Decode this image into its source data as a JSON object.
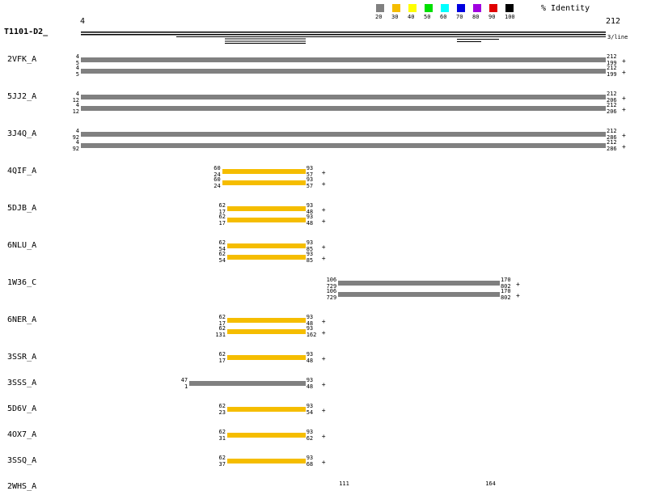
{
  "query": {
    "name": "T1101-D2_",
    "start": "4",
    "end": "212",
    "per_line": "3/line"
  },
  "legend": {
    "title": "% Identity",
    "items": [
      {
        "label": "20",
        "color": "#808080"
      },
      {
        "label": "30",
        "color": "#f5bd00"
      },
      {
        "label": "40",
        "color": "#ffff00"
      },
      {
        "label": "50",
        "color": "#00e000"
      },
      {
        "label": "60",
        "color": "#00ffff"
      },
      {
        "label": "70",
        "color": "#0000e0"
      },
      {
        "label": "80",
        "color": "#a000e0"
      },
      {
        "label": "90",
        "color": "#e00000"
      },
      {
        "label": "100",
        "color": "#000000"
      }
    ]
  },
  "hits": [
    {
      "name": "2VFK_A",
      "segments": [
        {
          "qs": "4",
          "ts": "5",
          "qe": "212",
          "te": "199",
          "flag": "+",
          "color": "#808080"
        },
        {
          "qs": "4",
          "ts": "5",
          "qe": "212",
          "te": "199",
          "flag": "+",
          "color": "#808080"
        }
      ]
    },
    {
      "name": "5JJ2_A",
      "segments": [
        {
          "qs": "4",
          "ts": "12",
          "qe": "212",
          "te": "206",
          "flag": "+",
          "color": "#808080"
        },
        {
          "qs": "4",
          "ts": "12",
          "qe": "212",
          "te": "206",
          "flag": "+",
          "color": "#808080"
        }
      ]
    },
    {
      "name": "3J4Q_A",
      "segments": [
        {
          "qs": "4",
          "ts": "92",
          "qe": "212",
          "te": "286",
          "flag": "+",
          "color": "#808080"
        },
        {
          "qs": "4",
          "ts": "92",
          "qe": "212",
          "te": "286",
          "flag": "+",
          "color": "#808080"
        }
      ]
    },
    {
      "name": "4QIF_A",
      "segments": [
        {
          "qs": "60",
          "ts": "24",
          "qe": "93",
          "te": "57",
          "flag": "+",
          "color": "#f5bd00"
        },
        {
          "qs": "60",
          "ts": "24",
          "qe": "93",
          "te": "57",
          "flag": "+",
          "color": "#f5bd00"
        }
      ]
    },
    {
      "name": "5DJB_A",
      "segments": [
        {
          "qs": "62",
          "ts": "17",
          "qe": "93",
          "te": "48",
          "flag": "+",
          "color": "#f5bd00"
        },
        {
          "qs": "62",
          "ts": "17",
          "qe": "93",
          "te": "48",
          "flag": "+",
          "color": "#f5bd00"
        }
      ]
    },
    {
      "name": "6NLU_A",
      "segments": [
        {
          "qs": "62",
          "ts": "54",
          "qe": "93",
          "te": "85",
          "flag": "+",
          "color": "#f5bd00"
        },
        {
          "qs": "62",
          "ts": "54",
          "qe": "93",
          "te": "85",
          "flag": "+",
          "color": "#f5bd00"
        }
      ]
    },
    {
      "name": "1W36_C",
      "segments": [
        {
          "qs": "106",
          "ts": "729",
          "qe": "170",
          "te": "802",
          "flag": "+",
          "color": "#808080"
        },
        {
          "qs": "106",
          "ts": "729",
          "qe": "170",
          "te": "802",
          "flag": "+",
          "color": "#808080"
        }
      ]
    },
    {
      "name": "6NER_A",
      "segments": [
        {
          "qs": "62",
          "ts": "17",
          "qe": "93",
          "te": "48",
          "flag": "+",
          "color": "#f5bd00"
        },
        {
          "qs": "62",
          "ts": "131",
          "qe": "93",
          "te": "162",
          "flag": "+",
          "color": "#f5bd00"
        }
      ]
    },
    {
      "name": "3SSR_A",
      "segments": [
        {
          "qs": "62",
          "ts": "17",
          "qe": "93",
          "te": "48",
          "flag": "+",
          "color": "#f5bd00"
        }
      ]
    },
    {
      "name": "3SSS_A",
      "segments": [
        {
          "qs": "47",
          "ts": "1",
          "qe": "93",
          "te": "48",
          "flag": "+",
          "color": "#808080"
        }
      ]
    },
    {
      "name": "5D6V_A",
      "segments": [
        {
          "qs": "62",
          "ts": "23",
          "qe": "93",
          "te": "54",
          "flag": "+",
          "color": "#f5bd00"
        }
      ]
    },
    {
      "name": "4OX7_A",
      "segments": [
        {
          "qs": "62",
          "ts": "31",
          "qe": "93",
          "te": "62",
          "flag": "+",
          "color": "#f5bd00"
        }
      ]
    },
    {
      "name": "3SSQ_A",
      "segments": [
        {
          "qs": "62",
          "ts": "37",
          "qe": "93",
          "te": "68",
          "flag": "+",
          "color": "#f5bd00"
        }
      ]
    },
    {
      "name": "2WHS_A",
      "segments": [
        {
          "qs": "111",
          "ts": "",
          "qe": "164",
          "te": "",
          "flag": "",
          "color": "#808080"
        }
      ]
    }
  ]
}
